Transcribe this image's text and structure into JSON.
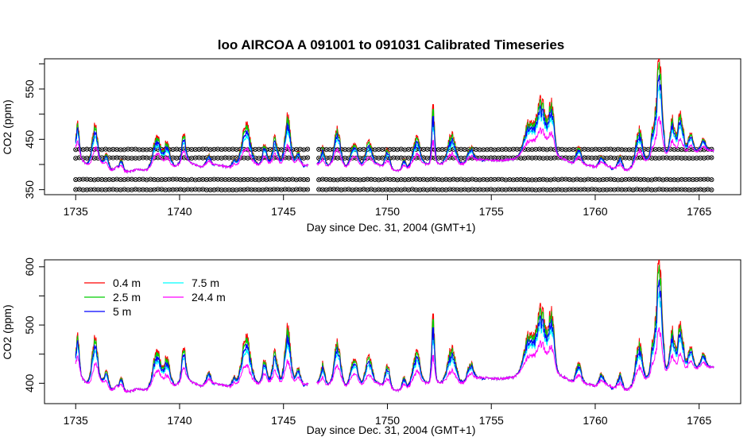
{
  "chart_data": [
    {
      "type": "line",
      "title": "loo   AIRCOA  A    091001  to  091031   Calibrated Timeseries",
      "xlabel": "Day since Dec. 31, 2004 (GMT+1)",
      "ylabel": "CO2 (ppm)",
      "xlim": [
        1733.5,
        1767.0
      ],
      "ylim": [
        340,
        610
      ],
      "xticks": [
        1735,
        1740,
        1745,
        1750,
        1755,
        1760,
        1765
      ],
      "yticks": [
        350,
        450,
        550
      ],
      "x_tick_labels": [
        "1735",
        "1740",
        "1745",
        "1750",
        "1755",
        "1760",
        "1765"
      ],
      "y_tick_labels": [
        "350",
        "450",
        "550"
      ],
      "grid": false,
      "data_gap": [
        1746.2,
        1746.6
      ],
      "calibration_markers": {
        "levels": [
          430,
          413,
          370,
          350
        ],
        "spacing_days": 0.18,
        "symbol": "circle-x"
      },
      "series_ref": "shared"
    },
    {
      "type": "line",
      "title": "",
      "xlabel": "Day since Dec. 31, 2004 (GMT+1)",
      "ylabel": "CO2 (ppm)",
      "xlim": [
        1733.5,
        1767.0
      ],
      "ylim": [
        365,
        612
      ],
      "xticks": [
        1735,
        1740,
        1745,
        1750,
        1755,
        1760,
        1765
      ],
      "yticks": [
        400,
        500,
        600
      ],
      "x_tick_labels": [
        "1735",
        "1740",
        "1745",
        "1750",
        "1755",
        "1760",
        "1765"
      ],
      "y_tick_labels": [
        "400",
        "500",
        "600"
      ],
      "grid": false,
      "legend_position": "top-left",
      "data_gap": [
        1746.2,
        1746.6
      ],
      "series_ref": "shared"
    }
  ],
  "legend": {
    "entries": [
      {
        "name": "0.4 m",
        "color": "#ff0000"
      },
      {
        "name": "2.5 m",
        "color": "#00cd00"
      },
      {
        "name": "5 m",
        "color": "#0000ff"
      },
      {
        "name": "7.5 m",
        "color": "#00ffff"
      },
      {
        "name": "24.4 m",
        "color": "#ff00ff"
      }
    ]
  },
  "series": {
    "x_start": 1735.0,
    "x_end": 1765.7,
    "baseline_ppm": [
      [
        1735.0,
        425
      ],
      [
        1735.2,
        415
      ],
      [
        1735.5,
        400
      ],
      [
        1735.8,
        390
      ],
      [
        1736.0,
        410
      ],
      [
        1736.3,
        400
      ],
      [
        1736.6,
        385
      ],
      [
        1737.0,
        395
      ],
      [
        1737.4,
        385
      ],
      [
        1738.0,
        390
      ],
      [
        1738.4,
        388
      ],
      [
        1739.0,
        400
      ],
      [
        1739.5,
        392
      ],
      [
        1740.0,
        400
      ],
      [
        1740.4,
        405
      ],
      [
        1741.0,
        395
      ],
      [
        1741.5,
        400
      ],
      [
        1742.0,
        398
      ],
      [
        1742.5,
        392
      ],
      [
        1743.0,
        398
      ],
      [
        1743.5,
        398
      ],
      [
        1744.0,
        400
      ],
      [
        1744.5,
        398
      ],
      [
        1745.0,
        398
      ],
      [
        1745.5,
        400
      ],
      [
        1746.0,
        398
      ],
      [
        1746.6,
        400
      ],
      [
        1747.0,
        392
      ],
      [
        1747.5,
        405
      ],
      [
        1748.0,
        395
      ],
      [
        1748.5,
        400
      ],
      [
        1749.0,
        392
      ],
      [
        1749.5,
        400
      ],
      [
        1750.0,
        392
      ],
      [
        1750.5,
        388
      ],
      [
        1751.0,
        392
      ],
      [
        1751.5,
        398
      ],
      [
        1752.0,
        400
      ],
      [
        1752.5,
        402
      ],
      [
        1753.0,
        395
      ],
      [
        1753.5,
        398
      ],
      [
        1754.0,
        405
      ],
      [
        1754.5,
        410
      ],
      [
        1755.0,
        408
      ],
      [
        1755.5,
        408
      ],
      [
        1756.0,
        410
      ],
      [
        1756.5,
        418
      ],
      [
        1757.0,
        425
      ],
      [
        1757.5,
        430
      ],
      [
        1758.0,
        420
      ],
      [
        1758.5,
        410
      ],
      [
        1759.0,
        400
      ],
      [
        1759.5,
        400
      ],
      [
        1760.0,
        395
      ],
      [
        1760.5,
        398
      ],
      [
        1761.0,
        392
      ],
      [
        1761.5,
        388
      ],
      [
        1762.0,
        398
      ],
      [
        1762.5,
        405
      ],
      [
        1763.0,
        412
      ],
      [
        1763.5,
        420
      ],
      [
        1764.0,
        415
      ],
      [
        1764.5,
        420
      ],
      [
        1765.0,
        425
      ],
      [
        1765.7,
        428
      ]
    ],
    "events": [
      {
        "x": 1735.1,
        "peak": 60,
        "width": 0.1
      },
      {
        "x": 1735.9,
        "peak": 75,
        "width": 0.2
      },
      {
        "x": 1736.5,
        "peak": 30,
        "width": 0.15
      },
      {
        "x": 1737.2,
        "peak": 20,
        "width": 0.12
      },
      {
        "x": 1738.9,
        "peak": 55,
        "width": 0.25
      },
      {
        "x": 1739.4,
        "peak": 50,
        "width": 0.2
      },
      {
        "x": 1740.2,
        "peak": 55,
        "width": 0.15
      },
      {
        "x": 1741.4,
        "peak": 20,
        "width": 0.15
      },
      {
        "x": 1742.6,
        "peak": 15,
        "width": 0.15
      },
      {
        "x": 1743.2,
        "peak": 80,
        "width": 0.3
      },
      {
        "x": 1744.1,
        "peak": 40,
        "width": 0.15
      },
      {
        "x": 1744.6,
        "peak": 55,
        "width": 0.18
      },
      {
        "x": 1745.2,
        "peak": 95,
        "width": 0.2
      },
      {
        "x": 1745.7,
        "peak": 25,
        "width": 0.15
      },
      {
        "x": 1746.9,
        "peak": 40,
        "width": 0.15
      },
      {
        "x": 1747.6,
        "peak": 70,
        "width": 0.2
      },
      {
        "x": 1748.4,
        "peak": 45,
        "width": 0.22
      },
      {
        "x": 1749.1,
        "peak": 55,
        "width": 0.22
      },
      {
        "x": 1750.0,
        "peak": 40,
        "width": 0.15
      },
      {
        "x": 1750.8,
        "peak": 20,
        "width": 0.12
      },
      {
        "x": 1751.4,
        "peak": 55,
        "width": 0.25
      },
      {
        "x": 1752.2,
        "peak": 110,
        "width": 0.1
      },
      {
        "x": 1753.1,
        "peak": 65,
        "width": 0.28
      },
      {
        "x": 1754.0,
        "peak": 30,
        "width": 0.2
      },
      {
        "x": 1756.8,
        "peak": 60,
        "width": 0.3
      },
      {
        "x": 1757.4,
        "peak": 95,
        "width": 0.3
      },
      {
        "x": 1757.9,
        "peak": 100,
        "width": 0.18
      },
      {
        "x": 1759.2,
        "peak": 35,
        "width": 0.18
      },
      {
        "x": 1760.3,
        "peak": 20,
        "width": 0.15
      },
      {
        "x": 1761.2,
        "peak": 25,
        "width": 0.15
      },
      {
        "x": 1762.1,
        "peak": 70,
        "width": 0.22
      },
      {
        "x": 1762.8,
        "peak": 60,
        "width": 0.18
      },
      {
        "x": 1763.1,
        "peak": 190,
        "width": 0.18
      },
      {
        "x": 1763.7,
        "peak": 70,
        "width": 0.15
      },
      {
        "x": 1764.1,
        "peak": 85,
        "width": 0.2
      },
      {
        "x": 1764.6,
        "peak": 40,
        "width": 0.18
      },
      {
        "x": 1765.2,
        "peak": 25,
        "width": 0.18
      }
    ],
    "dips": [
      {
        "x": 1736.1,
        "depth": 12,
        "width": 0.06
      },
      {
        "x": 1741.6,
        "depth": 10,
        "width": 0.06
      },
      {
        "x": 1743.0,
        "depth": 15,
        "width": 0.05
      },
      {
        "x": 1746.0,
        "depth": 12,
        "width": 0.05
      },
      {
        "x": 1754.6,
        "depth": 8,
        "width": 0.08
      },
      {
        "x": 1760.8,
        "depth": 10,
        "width": 0.06
      }
    ],
    "height_factors": [
      {
        "name": "0.4 m",
        "factor": 1.0
      },
      {
        "name": "2.5 m",
        "factor": 0.92
      },
      {
        "name": "5 m",
        "factor": 0.8
      },
      {
        "name": "7.5 m",
        "factor": 0.7
      },
      {
        "name": "24.4 m",
        "factor": 0.4
      }
    ],
    "draw_order": [
      "0.4 m",
      "2.5 m",
      "7.5 m",
      "5 m",
      "24.4 m"
    ]
  }
}
